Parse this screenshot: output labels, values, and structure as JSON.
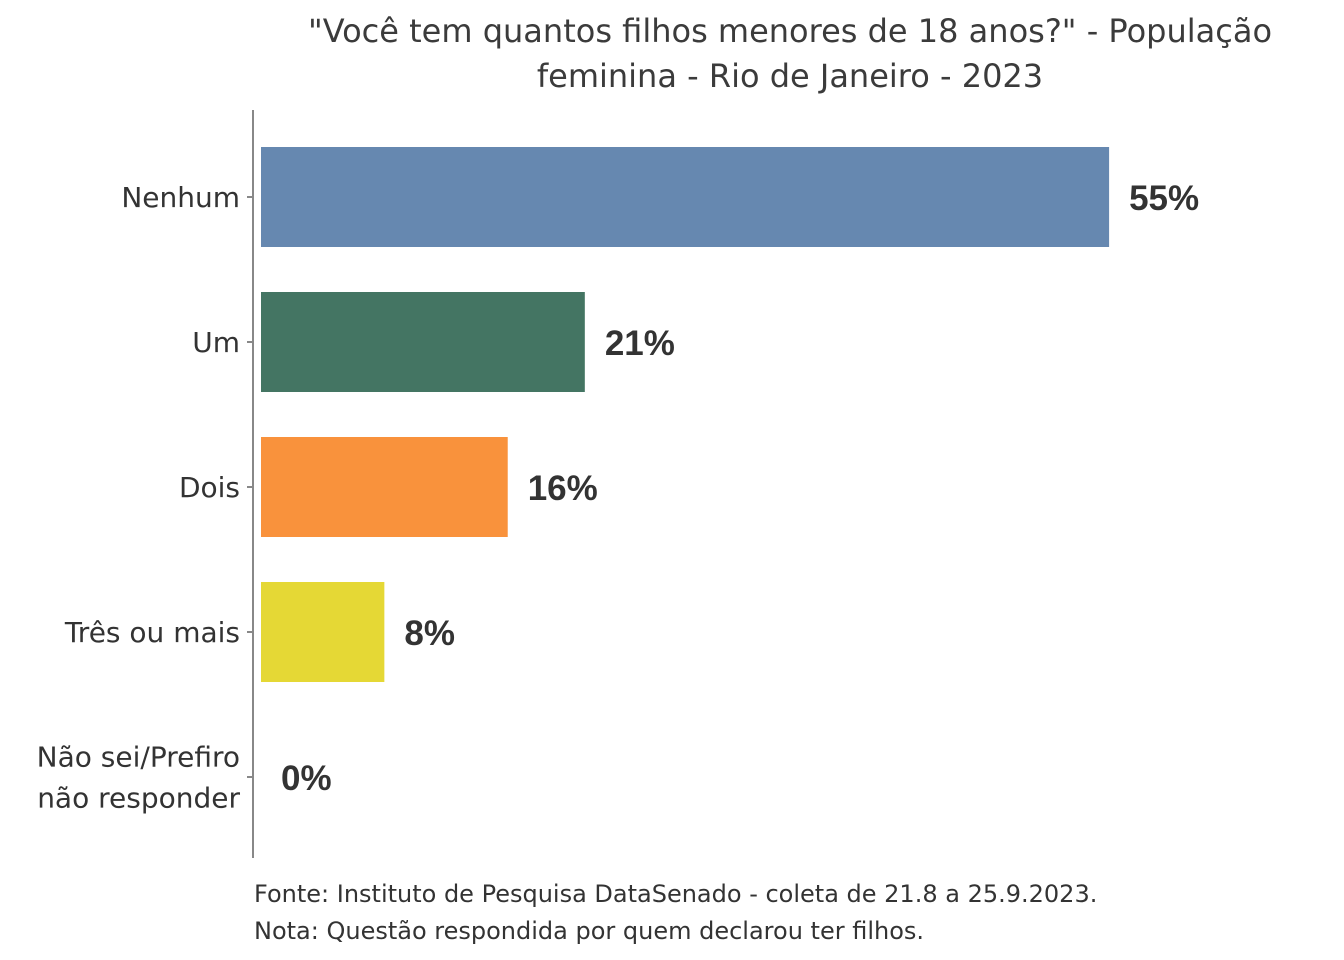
{
  "chart_data": {
    "type": "bar",
    "orientation": "horizontal",
    "title": "\"Você tem quantos filhos menores de 18 anos?\" - População feminina - Rio de Janeiro - 2023",
    "title_lines": [
      "\"Você tem quantos filhos menores de 18 anos?\" - População",
      "feminina - Rio de Janeiro - 2023"
    ],
    "categories": [
      "Nenhum",
      "Um",
      "Dois",
      "Três ou mais",
      "Não sei/Prefiro não responder"
    ],
    "category_label_lines": [
      [
        "Nenhum"
      ],
      [
        "Um"
      ],
      [
        "Dois"
      ],
      [
        "Três ou mais"
      ],
      [
        "Não sei/Prefiro",
        "não responder"
      ]
    ],
    "values": [
      55,
      21,
      16,
      8,
      0
    ],
    "value_labels": [
      "55%",
      "21%",
      "16%",
      "8%",
      "0%"
    ],
    "colors": [
      "#6688b0",
      "#447563",
      "#f9923c",
      "#e5d835",
      "#999999"
    ],
    "axis_color": "#888888",
    "xlim": [
      0,
      60
    ],
    "xlabel": "",
    "ylabel": "",
    "grid": false,
    "legend": "none"
  },
  "footnotes": {
    "source": "Fonte: Instituto de Pesquisa DataSenado - coleta de 21.8 a 25.9.2023.",
    "note": "Nota: Questão respondida por quem declarou ter filhos."
  }
}
